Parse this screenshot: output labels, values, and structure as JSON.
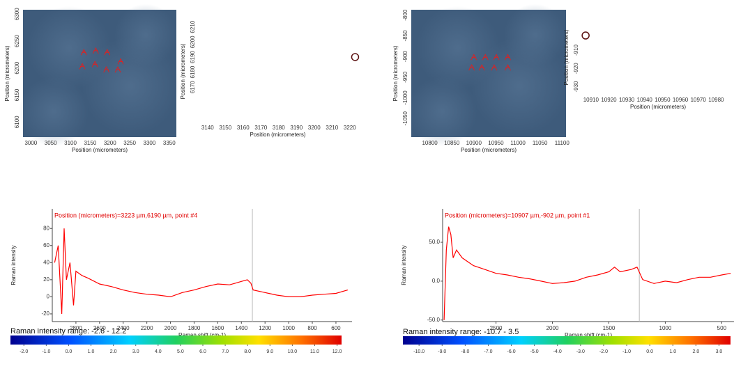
{
  "chart_data": [
    {
      "type": "image",
      "xlabel": "Position (micrometers)",
      "ylabel": "Position (micrometers)",
      "xlim": [
        2980,
        3368
      ],
      "ylim": [
        6072,
        6308
      ],
      "xticks": [
        3000,
        3050,
        3100,
        3150,
        3200,
        3250,
        3300,
        3350
      ],
      "yticks": [
        6100,
        6150,
        6200,
        6250,
        6300
      ],
      "markers": {
        "color": "#e02020",
        "x": [
          3134,
          3164,
          3193,
          3130,
          3162,
          3191,
          3220,
          3227
        ],
        "y": [
          6229,
          6232,
          6229,
          6203,
          6207,
          6197,
          6197,
          6212
        ]
      }
    },
    {
      "type": "scatter",
      "xlabel": "Position (micrometers)",
      "ylabel": "Position (micrometers)",
      "xlim": [
        3135,
        3224
      ],
      "ylim": [
        6147,
        6214
      ],
      "xticks": [
        3140,
        3150,
        3160,
        3170,
        3180,
        3190,
        3200,
        3210,
        3220
      ],
      "yticks": [
        6170,
        6180,
        6190,
        6200,
        6210
      ],
      "series": [
        {
          "color": "#5a1010",
          "x": [
            3223
          ],
          "y": [
            6190
          ]
        }
      ]
    },
    {
      "type": "line",
      "title": "Position (micrometers)=3223 µm,6190 µm, point #4",
      "xlabel": "Raman shift (cm-1)",
      "ylabel": "Raman intensity",
      "xlim": [
        3000,
        464
      ],
      "ylim": [
        -29,
        103
      ],
      "xticks": [
        2800,
        2600,
        2400,
        2200,
        2000,
        1800,
        1600,
        1400,
        1200,
        1000,
        800,
        600
      ],
      "yticks": [
        -20,
        0,
        20,
        40,
        60,
        80
      ],
      "vline": 1307,
      "series": [
        {
          "color": "#ff0000",
          "x": [
            2980,
            2950,
            2920,
            2900,
            2880,
            2850,
            2820,
            2800,
            2750,
            2700,
            2600,
            2500,
            2400,
            2300,
            2200,
            2100,
            2000,
            1900,
            1800,
            1700,
            1600,
            1500,
            1450,
            1400,
            1350,
            1320,
            1300,
            1200,
            1100,
            1000,
            900,
            800,
            700,
            600,
            500
          ],
          "values": [
            40,
            60,
            -20,
            80,
            20,
            40,
            -10,
            30,
            25,
            22,
            15,
            12,
            8,
            5,
            3,
            2,
            0,
            5,
            8,
            12,
            15,
            14,
            16,
            18,
            20,
            16,
            8,
            5,
            2,
            0,
            0,
            2,
            3,
            4,
            8
          ]
        }
      ]
    },
    {
      "type": "colorbar",
      "title": "Raman intensity range: -2.6 - 12.2",
      "clim": [
        -2.6,
        12.2
      ],
      "ticks": [
        {
          "value": -2,
          "label": "-2.0"
        },
        {
          "value": -1,
          "label": "-1.0"
        },
        {
          "value": 0,
          "label": "0.0"
        },
        {
          "value": 1,
          "label": "1.0"
        },
        {
          "value": 2,
          "label": "2.0"
        },
        {
          "value": 3,
          "label": "3.0"
        },
        {
          "value": 4,
          "label": "4.0"
        },
        {
          "value": 5,
          "label": "5.0"
        },
        {
          "value": 6,
          "label": "6.0"
        },
        {
          "value": 7,
          "label": "7.0"
        },
        {
          "value": 8,
          "label": "8.0"
        },
        {
          "value": 9,
          "label": "9.0"
        },
        {
          "value": 10,
          "label": "10.0"
        },
        {
          "value": 11,
          "label": "11.0"
        },
        {
          "value": 12,
          "label": "12.0"
        }
      ]
    },
    {
      "type": "image",
      "xlabel": "Position (micrometers)",
      "ylabel": "Position (micrometers)",
      "xlim": [
        10758,
        11109
      ],
      "ylim": [
        -1095,
        -787
      ],
      "xticks": [
        10800,
        10850,
        10900,
        10950,
        11000,
        11050,
        11100
      ],
      "yticks": [
        -1050,
        -1000,
        -950,
        -900,
        -850,
        -800
      ],
      "markers": {
        "color": "#e02020",
        "x": [
          10900,
          10926,
          10951,
          10977,
          10895,
          10918,
          10946,
          10977
        ],
        "y": [
          -902,
          -902,
          -902,
          -902,
          -927,
          -927,
          -927,
          -927
        ]
      }
    },
    {
      "type": "scatter",
      "xlabel": "Position (micrometers)",
      "ylabel": "Position (micrometers)",
      "xlim": [
        10905,
        10990
      ],
      "ylim": [
        -934,
        -894
      ],
      "xticks": [
        10910,
        10920,
        10930,
        10940,
        10950,
        10960,
        10970,
        10980
      ],
      "yticks": [
        -930,
        -920,
        -910
      ],
      "series": [
        {
          "color": "#5a1010",
          "x": [
            10907
          ],
          "y": [
            -902
          ]
        }
      ]
    },
    {
      "type": "line",
      "title": "Position (micrometers)=10907 µm,-902 µm, point #1",
      "xlabel": "Raman shift (cm-1)",
      "ylabel": "Raman intensity",
      "xlim": [
        2973,
        391
      ],
      "ylim": [
        -52,
        93
      ],
      "xticks": [
        2500,
        2000,
        1500,
        1000,
        500
      ],
      "yticks": [
        {
          "value": -50,
          "label": "-50.0"
        },
        {
          "value": 0,
          "label": "0.0"
        },
        {
          "value": 50,
          "label": "50.0"
        }
      ],
      "vline": 1230,
      "series": [
        {
          "color": "#ff0000",
          "x": [
            2960,
            2940,
            2920,
            2900,
            2880,
            2850,
            2800,
            2700,
            2600,
            2500,
            2400,
            2300,
            2200,
            2100,
            2000,
            1900,
            1800,
            1700,
            1600,
            1500,
            1450,
            1400,
            1300,
            1250,
            1200,
            1100,
            1000,
            900,
            800,
            700,
            600,
            500,
            420
          ],
          "values": [
            -50,
            40,
            70,
            60,
            30,
            40,
            30,
            20,
            15,
            10,
            8,
            5,
            3,
            0,
            -3,
            -2,
            0,
            5,
            8,
            12,
            18,
            12,
            15,
            18,
            2,
            -3,
            0,
            -2,
            2,
            5,
            5,
            8,
            10
          ]
        }
      ]
    },
    {
      "type": "colorbar",
      "title": "Raman intensity range: -10.7 - 3.5",
      "clim": [
        -10.7,
        3.5
      ],
      "ticks": [
        {
          "value": -10,
          "label": "-10.0"
        },
        {
          "value": -9,
          "label": "-9.0"
        },
        {
          "value": -8,
          "label": "-8.0"
        },
        {
          "value": -7,
          "label": "-7.0"
        },
        {
          "value": -6,
          "label": "-6.0"
        },
        {
          "value": -5,
          "label": "-5.0"
        },
        {
          "value": -4,
          "label": "-4.0"
        },
        {
          "value": -3,
          "label": "-3.0"
        },
        {
          "value": -2,
          "label": "-2.0"
        },
        {
          "value": -1,
          "label": "-1.0"
        },
        {
          "value": 0,
          "label": "0.0"
        },
        {
          "value": 1,
          "label": "1.0"
        },
        {
          "value": 2,
          "label": "2.0"
        },
        {
          "value": 3,
          "label": "3.0"
        }
      ]
    }
  ]
}
